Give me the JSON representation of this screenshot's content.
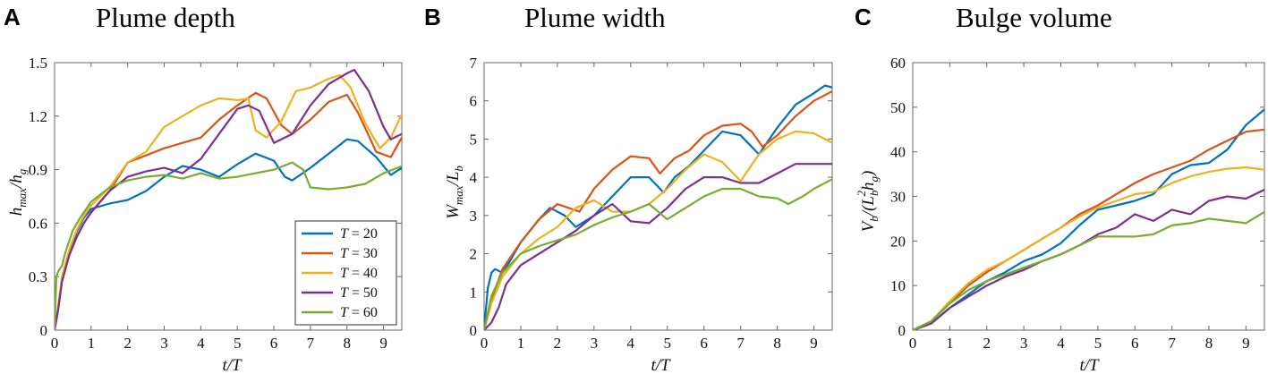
{
  "colors": {
    "T20": "#0072BD",
    "T30": "#D95319",
    "T40": "#EDB120",
    "T50": "#7E2F8E",
    "T60": "#77AC30"
  },
  "chart_data": [
    {
      "type": "line",
      "panel": "A",
      "title": "Plume depth",
      "xlabel": "t/T",
      "ylabel_parts": [
        "h",
        "max",
        "/h",
        "g"
      ],
      "xlim": [
        0,
        9.5
      ],
      "ylim": [
        0,
        1.5
      ],
      "xticks": [
        0,
        1,
        2,
        3,
        4,
        5,
        6,
        7,
        8,
        9
      ],
      "yticks": [
        0,
        0.3,
        0.6,
        0.9,
        1.2,
        1.5
      ],
      "ytick_labels": [
        "0",
        "0.3",
        "0.6",
        "0.9",
        "1.2",
        "1.5"
      ],
      "legend": {
        "location": "bottom-right",
        "entries": [
          "T = 20",
          "T = 30",
          "T = 40",
          "T = 50",
          "T = 60"
        ]
      },
      "series": [
        {
          "name": "T = 20",
          "color": "#0072BD",
          "x": [
            0,
            0.1,
            0.2,
            0.4,
            0.6,
            0.8,
            1,
            1.5,
            2,
            2.5,
            3,
            3.5,
            4,
            4.5,
            5,
            5.5,
            6,
            6.3,
            6.5,
            7,
            7.5,
            8,
            8.3,
            8.8,
            9.2,
            9.5
          ],
          "y": [
            0,
            0.12,
            0.28,
            0.43,
            0.55,
            0.63,
            0.68,
            0.71,
            0.73,
            0.78,
            0.86,
            0.92,
            0.9,
            0.86,
            0.93,
            0.99,
            0.95,
            0.86,
            0.84,
            0.91,
            0.99,
            1.07,
            1.06,
            0.97,
            0.87,
            0.91
          ]
        },
        {
          "name": "T = 30",
          "color": "#D95319",
          "x": [
            0,
            0.1,
            0.2,
            0.4,
            0.6,
            0.8,
            1,
            1.5,
            2,
            2.5,
            3,
            3.5,
            4,
            4.5,
            5,
            5.5,
            5.8,
            6.2,
            6.5,
            7,
            7.5,
            8,
            8.3,
            8.8,
            9.2,
            9.5
          ],
          "y": [
            0,
            0.12,
            0.28,
            0.42,
            0.52,
            0.6,
            0.66,
            0.78,
            0.94,
            0.98,
            1.02,
            1.05,
            1.08,
            1.18,
            1.26,
            1.33,
            1.3,
            1.15,
            1.1,
            1.18,
            1.28,
            1.32,
            1.22,
            1.0,
            0.97,
            1.08
          ]
        },
        {
          "name": "T = 40",
          "color": "#EDB120",
          "x": [
            0,
            0.1,
            0.2,
            0.4,
            0.6,
            0.8,
            1,
            1.5,
            2,
            2.5,
            3,
            3.5,
            4,
            4.5,
            5,
            5.3,
            5.5,
            5.8,
            6.2,
            6.6,
            7,
            7.5,
            7.8,
            8.1,
            8.5,
            8.9,
            9.2,
            9.5
          ],
          "y": [
            0,
            0.14,
            0.3,
            0.45,
            0.56,
            0.64,
            0.7,
            0.8,
            0.94,
            1.0,
            1.14,
            1.2,
            1.26,
            1.3,
            1.29,
            1.3,
            1.12,
            1.08,
            1.17,
            1.34,
            1.36,
            1.41,
            1.43,
            1.36,
            1.16,
            1.02,
            1.08,
            1.21
          ]
        },
        {
          "name": "T = 50",
          "color": "#7E2F8E",
          "x": [
            0,
            0.1,
            0.2,
            0.4,
            0.6,
            0.8,
            1,
            1.5,
            2,
            2.5,
            3,
            3.5,
            4,
            4.5,
            5,
            5.3,
            5.6,
            6,
            6.5,
            7,
            7.5,
            8,
            8.2,
            8.6,
            9,
            9.2,
            9.5
          ],
          "y": [
            0,
            0.12,
            0.27,
            0.42,
            0.52,
            0.6,
            0.66,
            0.78,
            0.86,
            0.89,
            0.91,
            0.88,
            0.96,
            1.1,
            1.24,
            1.26,
            1.23,
            1.05,
            1.1,
            1.26,
            1.38,
            1.44,
            1.46,
            1.34,
            1.14,
            1.07,
            1.1
          ]
        },
        {
          "name": "T = 60",
          "color": "#77AC30",
          "x": [
            0,
            0.05,
            0.1,
            0.2,
            0.3,
            0.5,
            0.7,
            1,
            1.5,
            2,
            2.5,
            3,
            3.5,
            4,
            4.5,
            5,
            5.5,
            6,
            6.5,
            6.8,
            7,
            7.5,
            8,
            8.5,
            9,
            9.5
          ],
          "y": [
            0,
            0.3,
            0.33,
            0.36,
            0.44,
            0.56,
            0.63,
            0.72,
            0.8,
            0.84,
            0.86,
            0.87,
            0.85,
            0.88,
            0.85,
            0.86,
            0.88,
            0.9,
            0.94,
            0.9,
            0.8,
            0.79,
            0.8,
            0.82,
            0.88,
            0.92
          ]
        }
      ]
    },
    {
      "type": "line",
      "panel": "B",
      "title": "Plume width",
      "xlabel": "t/T",
      "ylabel_parts": [
        "W",
        "max",
        "/L",
        "b"
      ],
      "xlim": [
        0,
        9.5
      ],
      "ylim": [
        0,
        7
      ],
      "xticks": [
        0,
        1,
        2,
        3,
        4,
        5,
        6,
        7,
        8,
        9
      ],
      "yticks": [
        0,
        1,
        2,
        3,
        4,
        5,
        6,
        7
      ],
      "ytick_labels": [
        "0",
        "1",
        "2",
        "3",
        "4",
        "5",
        "6",
        "7"
      ],
      "series": [
        {
          "name": "T = 20",
          "color": "#0072BD",
          "x": [
            0,
            0.1,
            0.2,
            0.3,
            0.5,
            0.7,
            1,
            1.5,
            1.8,
            2.2,
            2.5,
            3,
            3.5,
            4,
            4.5,
            4.9,
            5.2,
            5.6,
            6,
            6.5,
            7,
            7.5,
            8,
            8.5,
            9,
            9.3,
            9.5
          ],
          "y": [
            0,
            1.1,
            1.5,
            1.6,
            1.5,
            1.8,
            2.3,
            2.9,
            3.2,
            3.0,
            2.7,
            3.0,
            3.5,
            4.0,
            4.0,
            3.6,
            4.0,
            4.3,
            4.7,
            5.2,
            5.1,
            4.6,
            5.3,
            5.9,
            6.2,
            6.4,
            6.35
          ]
        },
        {
          "name": "T = 30",
          "color": "#D95319",
          "x": [
            0,
            0.2,
            0.5,
            1,
            1.5,
            2,
            2.3,
            2.6,
            3,
            3.5,
            4,
            4.5,
            4.8,
            5.2,
            5.6,
            6,
            6.5,
            7,
            7.3,
            7.6,
            8,
            8.5,
            9,
            9.5
          ],
          "y": [
            0,
            0.8,
            1.6,
            2.3,
            2.9,
            3.3,
            3.2,
            3.1,
            3.7,
            4.2,
            4.55,
            4.5,
            4.1,
            4.5,
            4.7,
            5.1,
            5.35,
            5.4,
            5.2,
            4.8,
            5.1,
            5.6,
            6.0,
            6.25
          ]
        },
        {
          "name": "T = 40",
          "color": "#EDB120",
          "x": [
            0,
            0.2,
            0.5,
            1,
            1.5,
            2,
            2.5,
            3,
            3.5,
            4,
            4.5,
            5,
            5.5,
            6,
            6.5,
            7,
            7.5,
            8,
            8.5,
            9,
            9.5
          ],
          "y": [
            0,
            0.7,
            1.4,
            2.0,
            2.4,
            2.7,
            3.2,
            3.4,
            3.1,
            3.1,
            3.3,
            3.7,
            4.2,
            4.6,
            4.4,
            3.9,
            4.6,
            5.0,
            5.2,
            5.15,
            4.9
          ]
        },
        {
          "name": "T = 50",
          "color": "#7E2F8E",
          "x": [
            0,
            0.2,
            0.4,
            0.6,
            1,
            1.5,
            2,
            2.5,
            3,
            3.5,
            4,
            4.5,
            5,
            5.5,
            6,
            6.5,
            7,
            7.5,
            8,
            8.5,
            9,
            9.5
          ],
          "y": [
            0,
            0.2,
            0.6,
            1.2,
            1.7,
            2.0,
            2.3,
            2.6,
            3.0,
            3.3,
            2.85,
            2.8,
            3.2,
            3.7,
            4.0,
            4.0,
            3.85,
            3.85,
            4.1,
            4.35,
            4.35,
            4.35
          ]
        },
        {
          "name": "T = 60",
          "color": "#77AC30",
          "x": [
            0,
            0.2,
            0.5,
            1,
            1.5,
            2,
            2.5,
            3,
            3.5,
            4,
            4.5,
            5,
            5.5,
            6,
            6.5,
            7,
            7.5,
            8,
            8.3,
            8.7,
            9,
            9.5
          ],
          "y": [
            0,
            0.9,
            1.5,
            2.0,
            2.2,
            2.35,
            2.5,
            2.75,
            2.95,
            3.1,
            3.3,
            2.9,
            3.2,
            3.5,
            3.7,
            3.7,
            3.5,
            3.45,
            3.3,
            3.5,
            3.7,
            3.95
          ]
        }
      ]
    },
    {
      "type": "line",
      "panel": "C",
      "title": "Bulge volume",
      "xlabel": "t/T",
      "ylabel_parts": [
        "V",
        "b",
        "/(L",
        "b",
        "2",
        "h",
        "g",
        ")"
      ],
      "xlim": [
        0,
        9.5
      ],
      "ylim": [
        0,
        60
      ],
      "xticks": [
        0,
        1,
        2,
        3,
        4,
        5,
        6,
        7,
        8,
        9
      ],
      "yticks": [
        0,
        10,
        20,
        30,
        40,
        50,
        60
      ],
      "ytick_labels": [
        "0",
        "10",
        "20",
        "30",
        "40",
        "50",
        "60"
      ],
      "series": [
        {
          "name": "T = 20",
          "color": "#0072BD",
          "x": [
            0,
            0.5,
            1,
            1.5,
            2,
            2.5,
            3,
            3.5,
            4,
            4.5,
            5,
            5.5,
            6,
            6.5,
            7,
            7.5,
            8,
            8.5,
            9,
            9.5
          ],
          "y": [
            0,
            1.5,
            5,
            8,
            11,
            13,
            15.5,
            17,
            19.5,
            23.5,
            27,
            28,
            29,
            30.5,
            35,
            37,
            37.5,
            40.5,
            46,
            49.5
          ]
        },
        {
          "name": "T = 30",
          "color": "#D95319",
          "x": [
            0,
            0.5,
            1,
            1.5,
            2,
            2.5,
            3,
            3.5,
            4,
            4.5,
            5,
            5.5,
            6,
            6.5,
            7,
            7.5,
            8,
            8.5,
            9,
            9.5
          ],
          "y": [
            0,
            2,
            6,
            10,
            13,
            15.5,
            18,
            20.5,
            23,
            26,
            28,
            30.5,
            33,
            35,
            36.5,
            38,
            40.5,
            42.5,
            44.5,
            45
          ]
        },
        {
          "name": "T = 40",
          "color": "#EDB120",
          "x": [
            0,
            0.5,
            1,
            1.5,
            2,
            2.5,
            3,
            3.5,
            4,
            4.5,
            5,
            5.5,
            6,
            6.5,
            7,
            7.5,
            8,
            8.5,
            9,
            9.5
          ],
          "y": [
            0,
            2,
            6.5,
            10.5,
            13.5,
            15.5,
            18,
            20.5,
            23,
            25.5,
            27.5,
            29,
            30.5,
            31,
            33,
            34.5,
            35.5,
            36.2,
            36.5,
            36
          ]
        },
        {
          "name": "T = 50",
          "color": "#7E2F8E",
          "x": [
            0,
            0.5,
            1,
            1.5,
            2,
            2.5,
            3,
            3.5,
            4,
            4.5,
            5,
            5.5,
            6,
            6.5,
            7,
            7.5,
            8,
            8.5,
            9,
            9.5
          ],
          "y": [
            0,
            1.5,
            5,
            7.5,
            10,
            12,
            13.5,
            15.5,
            17,
            19,
            21.5,
            23,
            26,
            24.5,
            27,
            26,
            29,
            30,
            29.5,
            31.5
          ]
        },
        {
          "name": "T = 60",
          "color": "#77AC30",
          "x": [
            0,
            0.5,
            1,
            1.5,
            2,
            2.5,
            3,
            3.5,
            4,
            4.5,
            5,
            5.5,
            6,
            6.5,
            7,
            7.5,
            8,
            8.5,
            9,
            9.5
          ],
          "y": [
            0,
            2,
            6,
            9,
            11,
            12.5,
            14,
            15.5,
            17,
            19,
            21,
            21,
            21,
            21.5,
            23.5,
            24,
            25,
            24.5,
            24,
            26.5
          ]
        }
      ]
    }
  ]
}
